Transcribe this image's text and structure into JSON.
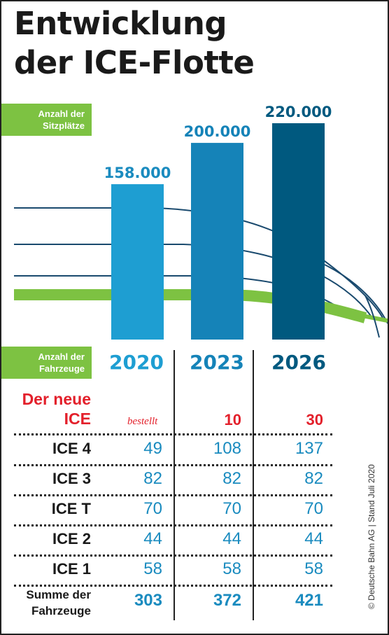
{
  "title_line1": "Entwicklung",
  "title_line2": "der ICE-Flotte",
  "seats_label": [
    "Anzahl der",
    "Sitzplätze"
  ],
  "vehicles_label": [
    "Anzahl der",
    "Fahrzeuge"
  ],
  "colors": {
    "bar_2020": "#1e9ed2",
    "bar_2023": "#1583b8",
    "bar_2026": "#00597f",
    "label_blue": "#1a8bbf",
    "green": "#7dc242",
    "train_line": "#1a4a6e",
    "red": "#e3202b"
  },
  "chart_data": {
    "type": "bar",
    "title": "Entwicklung der ICE-Flotte",
    "ylabel": "Anzahl der Sitzplätze",
    "categories": [
      "2020",
      "2023",
      "2026"
    ],
    "values": [
      158000,
      200000,
      220000
    ],
    "value_labels": [
      "158.000",
      "200.000",
      "220.000"
    ],
    "ylim": [
      0,
      220000
    ]
  },
  "table": {
    "years": [
      "2020",
      "2023",
      "2026"
    ],
    "new_ice": {
      "label_line1": "Der neue",
      "label_line2": "ICE",
      "note": "bestellt",
      "values": [
        "",
        "10",
        "30"
      ]
    },
    "rows": [
      {
        "label": "ICE 4",
        "values": [
          "49",
          "108",
          "137"
        ]
      },
      {
        "label": "ICE 3",
        "values": [
          "82",
          "82",
          "82"
        ]
      },
      {
        "label": "ICE T",
        "values": [
          "70",
          "70",
          "70"
        ]
      },
      {
        "label": "ICE 2",
        "values": [
          "44",
          "44",
          "44"
        ]
      },
      {
        "label": "ICE 1",
        "values": [
          "58",
          "58",
          "58"
        ]
      }
    ],
    "sum": {
      "label_line1": "Summe der",
      "label_line2": "Fahrzeuge",
      "values": [
        "303",
        "372",
        "421"
      ]
    }
  },
  "copyright": "© Deutsche Bahn AG | Stand Juli 2020"
}
